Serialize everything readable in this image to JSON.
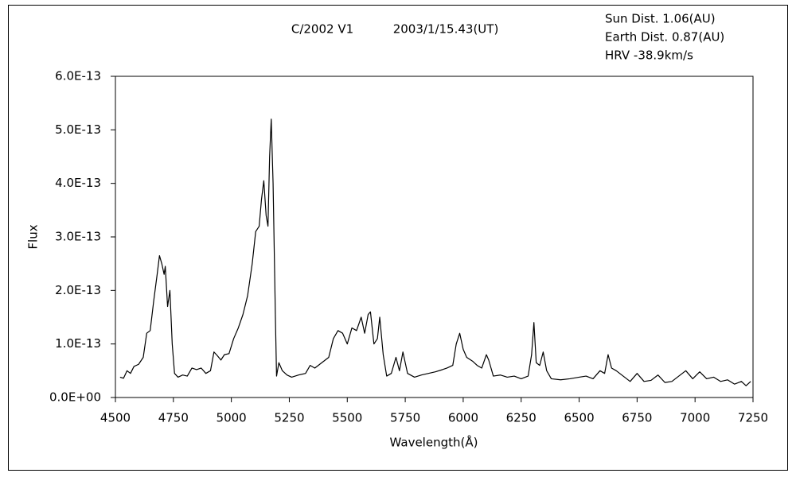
{
  "chart_data": {
    "type": "line",
    "title": "C/2002 V1",
    "subtitle": "2003/1/15.43(UT)",
    "annotations": [
      "Sun Dist. 1.06(AU)",
      "Earth Dist. 0.87(AU)",
      "HRV -38.9km/s"
    ],
    "x_label": "Wavelength(Å)",
    "y_label": "Flux",
    "color": "#000000",
    "grid": false,
    "xlim": [
      4500,
      7250
    ],
    "xticks": [
      4500,
      4750,
      5000,
      5250,
      5500,
      5750,
      6000,
      6250,
      6500,
      6750,
      7000,
      7250
    ],
    "ylim": [
      0,
      6e-13
    ],
    "yticks": [
      {
        "value": 0,
        "label": "0.0E+00"
      },
      {
        "value": 1e-13,
        "label": "1.0E-13"
      },
      {
        "value": 2e-13,
        "label": "2.0E-13"
      },
      {
        "value": 3e-13,
        "label": "3.0E-13"
      },
      {
        "value": 4e-13,
        "label": "4.0E-13"
      },
      {
        "value": 5e-13,
        "label": "5.0E-13"
      },
      {
        "value": 6e-13,
        "label": "6.0E-13"
      }
    ],
    "x": [
      4520,
      4535,
      4550,
      4565,
      4580,
      4600,
      4620,
      4635,
      4650,
      4665,
      4680,
      4690,
      4700,
      4710,
      4715,
      4725,
      4735,
      4745,
      4755,
      4770,
      4790,
      4810,
      4830,
      4850,
      4870,
      4890,
      4910,
      4925,
      4940,
      4955,
      4970,
      4990,
      5010,
      5030,
      5050,
      5070,
      5090,
      5105,
      5120,
      5130,
      5140,
      5150,
      5158,
      5165,
      5172,
      5180,
      5190,
      5195,
      5205,
      5220,
      5240,
      5260,
      5290,
      5320,
      5340,
      5360,
      5390,
      5420,
      5440,
      5460,
      5480,
      5500,
      5520,
      5540,
      5560,
      5575,
      5590,
      5600,
      5615,
      5630,
      5640,
      5655,
      5670,
      5690,
      5710,
      5725,
      5740,
      5760,
      5790,
      5820,
      5850,
      5880,
      5910,
      5930,
      5955,
      5970,
      5985,
      6000,
      6015,
      6040,
      6060,
      6080,
      6100,
      6110,
      6130,
      6160,
      6190,
      6220,
      6250,
      6280,
      6295,
      6305,
      6315,
      6330,
      6345,
      6360,
      6380,
      6420,
      6460,
      6500,
      6530,
      6560,
      6590,
      6610,
      6625,
      6640,
      6660,
      6690,
      6720,
      6750,
      6780,
      6810,
      6840,
      6870,
      6900,
      6930,
      6960,
      6990,
      7020,
      7050,
      7080,
      7110,
      7140,
      7170,
      7200,
      7220,
      7240
    ],
    "values": [
      3.8e-14,
      3.6e-14,
      5e-14,
      4.5e-14,
      5.8e-14,
      6.2e-14,
      7.5e-14,
      1.2e-13,
      1.25e-13,
      1.8e-13,
      2.3e-13,
      2.65e-13,
      2.5e-13,
      2.3e-13,
      2.45e-13,
      1.7e-13,
      2e-13,
      1e-13,
      4.5e-14,
      3.8e-14,
      4.2e-14,
      4e-14,
      5.5e-14,
      5.2e-14,
      5.5e-14,
      4.5e-14,
      5e-14,
      8.5e-14,
      7.8e-14,
      7e-14,
      8e-14,
      8.2e-14,
      1.1e-13,
      1.3e-13,
      1.55e-13,
      1.9e-13,
      2.5e-13,
      3.1e-13,
      3.2e-13,
      3.7e-13,
      4.05e-13,
      3.4e-13,
      3.2e-13,
      4.5e-13,
      5.2e-13,
      4e-13,
      1.5e-13,
      4e-14,
      6.5e-14,
      5e-14,
      4.2e-14,
      3.8e-14,
      4.2e-14,
      4.5e-14,
      6e-14,
      5.5e-14,
      6.5e-14,
      7.5e-14,
      1.1e-13,
      1.25e-13,
      1.2e-13,
      1e-13,
      1.3e-13,
      1.25e-13,
      1.5e-13,
      1.2e-13,
      1.55e-13,
      1.6e-13,
      1e-13,
      1.1e-13,
      1.5e-13,
      8e-14,
      4e-14,
      4.5e-14,
      7.5e-14,
      5e-14,
      8.5e-14,
      4.5e-14,
      3.8e-14,
      4.2e-14,
      4.5e-14,
      4.8e-14,
      5.2e-14,
      5.5e-14,
      6e-14,
      1e-13,
      1.2e-13,
      9e-14,
      7.5e-14,
      6.8e-14,
      6e-14,
      5.5e-14,
      8e-14,
      7e-14,
      4e-14,
      4.2e-14,
      3.8e-14,
      4e-14,
      3.5e-14,
      4e-14,
      8e-14,
      1.4e-13,
      6.5e-14,
      6e-14,
      8.5e-14,
      5e-14,
      3.5e-14,
      3.3e-14,
      3.5e-14,
      3.8e-14,
      4e-14,
      3.5e-14,
      5e-14,
      4.5e-14,
      8e-14,
      5.5e-14,
      5e-14,
      4e-14,
      3e-14,
      4.5e-14,
      3e-14,
      3.2e-14,
      4.2e-14,
      2.8e-14,
      3e-14,
      4e-14,
      5e-14,
      3.5e-14,
      4.8e-14,
      3.5e-14,
      3.8e-14,
      3e-14,
      3.3e-14,
      2.5e-14,
      3e-14,
      2.2e-14,
      3e-14
    ]
  }
}
